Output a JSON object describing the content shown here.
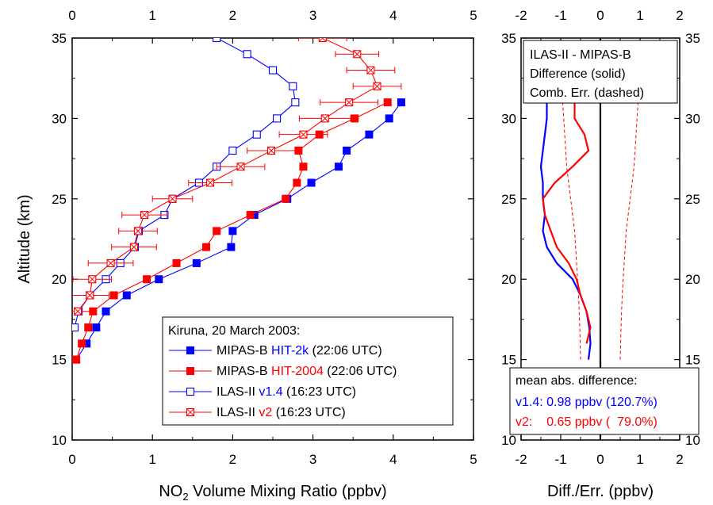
{
  "chart_data": [
    {
      "type": "line",
      "xlabel": "NO₂ Volume Mixing Ratio (ppbv)",
      "xlabel_main": "NO",
      "xlabel_sub": "2",
      "xlabel_rest": " Volume Mixing Ratio (ppbv)",
      "ylabel": "Altitude (km)",
      "xlim": [
        0,
        5
      ],
      "ylim": [
        10,
        35
      ],
      "x_ticks": [
        0,
        1,
        2,
        3,
        4,
        5
      ],
      "y_ticks": [
        10,
        15,
        20,
        25,
        30,
        35
      ],
      "legend_title": "Kiruna, 20 March 2003:",
      "legend_position": "bottom-right",
      "series": [
        {
          "legend_prefix": "MIPAS-B ",
          "legend_version": "HIT-2k",
          "legend_suffix": " (22:06 UTC)",
          "color": "#0000ff",
          "version_color": "#0000ff",
          "marker": "filled-square",
          "points": [
            [
              0.05,
              15
            ],
            [
              0.18,
              16
            ],
            [
              0.3,
              17
            ],
            [
              0.42,
              18
            ],
            [
              0.68,
              19
            ],
            [
              1.08,
              20
            ],
            [
              1.55,
              21
            ],
            [
              1.98,
              22
            ],
            [
              2.0,
              23
            ],
            [
              2.27,
              24
            ],
            [
              2.68,
              25
            ],
            [
              2.98,
              26
            ],
            [
              3.32,
              27
            ],
            [
              3.42,
              28
            ],
            [
              3.7,
              29
            ],
            [
              3.95,
              30
            ],
            [
              4.1,
              31
            ]
          ]
        },
        {
          "legend_prefix": "MIPAS-B ",
          "legend_version": "HIT-2004",
          "legend_suffix": " (22:06 UTC)",
          "color": "#ff0000",
          "version_color": "#ff0000",
          "marker": "filled-square",
          "points": [
            [
              0.05,
              15
            ],
            [
              0.12,
              16
            ],
            [
              0.2,
              17
            ],
            [
              0.26,
              18
            ],
            [
              0.52,
              19
            ],
            [
              0.93,
              20
            ],
            [
              1.3,
              21
            ],
            [
              1.67,
              22
            ],
            [
              1.8,
              23
            ],
            [
              2.22,
              24
            ],
            [
              2.66,
              25
            ],
            [
              2.8,
              26
            ],
            [
              2.88,
              27
            ],
            [
              2.82,
              28
            ],
            [
              3.08,
              29
            ],
            [
              3.52,
              30
            ],
            [
              3.93,
              31
            ]
          ]
        },
        {
          "legend_prefix": "ILAS-II ",
          "legend_version": "v1.4",
          "legend_suffix": " (16:23 UTC)",
          "color": "#0000ff",
          "version_color": "#0000ff",
          "marker": "open-square",
          "points": [
            [
              0.03,
              17
            ],
            [
              0.08,
              18
            ],
            [
              0.22,
              19
            ],
            [
              0.42,
              20
            ],
            [
              0.6,
              21
            ],
            [
              0.78,
              22
            ],
            [
              0.83,
              23
            ],
            [
              1.15,
              24
            ],
            [
              1.25,
              25
            ],
            [
              1.58,
              26
            ],
            [
              1.8,
              27
            ],
            [
              2.0,
              28
            ],
            [
              2.3,
              29
            ],
            [
              2.55,
              30
            ],
            [
              2.78,
              31
            ],
            [
              2.75,
              32
            ],
            [
              2.5,
              33
            ],
            [
              2.18,
              34
            ],
            [
              1.8,
              35
            ]
          ]
        },
        {
          "legend_prefix": "ILAS-II ",
          "legend_version": "v2",
          "legend_suffix": " (16:23 UTC)",
          "color": "#ff0000",
          "version_color": "#ff0000",
          "marker": "crossed-square",
          "points": [
            [
              0.07,
              18
            ],
            [
              0.22,
              19
            ],
            [
              0.25,
              20
            ],
            [
              0.48,
              21
            ],
            [
              0.77,
              22
            ],
            [
              0.82,
              23
            ],
            [
              0.9,
              24
            ],
            [
              1.25,
              25
            ],
            [
              1.72,
              26
            ],
            [
              2.1,
              27
            ],
            [
              2.48,
              28
            ],
            [
              2.88,
              29
            ],
            [
              3.15,
              30
            ],
            [
              3.45,
              31
            ],
            [
              3.8,
              32
            ],
            [
              3.72,
              33
            ],
            [
              3.55,
              34
            ],
            [
              3.12,
              35
            ]
          ],
          "x_error": [
            0.22,
            0.24,
            0.24,
            0.28,
            0.28,
            0.24,
            0.28,
            0.25,
            0.27,
            0.3,
            0.3,
            0.3,
            0.32,
            0.36,
            0.3,
            0.3,
            0.27,
            0.3
          ]
        }
      ]
    },
    {
      "type": "line",
      "xlabel": "Diff./Err. (ppbv)",
      "ylabel": "",
      "xlim": [
        -2,
        2
      ],
      "ylim": [
        10,
        35
      ],
      "x_ticks": [
        -2,
        -1,
        0,
        1,
        2
      ],
      "y_ticks": [
        10,
        15,
        20,
        25,
        30,
        35
      ],
      "annotation_top": [
        "ILAS-II - MIPAS-B",
        "Difference (solid)",
        "Comb. Err. (dashed)"
      ],
      "stats_title": "mean abs. difference:",
      "stats": [
        {
          "text": "v1.4: 0.98 ppbv (120.7%)",
          "color": "#0000ff"
        },
        {
          "text": "v2:    0.65 ppbv (  79.0%)",
          "color": "#ff0000"
        }
      ],
      "series": [
        {
          "name": "v1.4 difference",
          "color": "#0000ff",
          "style": "solid",
          "points": [
            [
              -0.3,
              15
            ],
            [
              -0.25,
              16
            ],
            [
              -0.28,
              17
            ],
            [
              -0.35,
              18
            ],
            [
              -0.5,
              19
            ],
            [
              -0.7,
              20
            ],
            [
              -1.1,
              21
            ],
            [
              -1.35,
              22
            ],
            [
              -1.45,
              23
            ],
            [
              -1.4,
              24
            ],
            [
              -1.45,
              25
            ],
            [
              -1.45,
              26
            ],
            [
              -1.5,
              27
            ],
            [
              -1.45,
              28
            ],
            [
              -1.4,
              29
            ],
            [
              -1.35,
              30
            ],
            [
              -1.35,
              31
            ]
          ]
        },
        {
          "name": "v2 difference",
          "color": "#ff0000",
          "style": "solid",
          "points": [
            [
              -0.35,
              16
            ],
            [
              -0.25,
              17
            ],
            [
              -0.35,
              18
            ],
            [
              -0.5,
              19
            ],
            [
              -0.6,
              20
            ],
            [
              -0.8,
              21
            ],
            [
              -1.1,
              22
            ],
            [
              -1.25,
              23
            ],
            [
              -1.4,
              24
            ],
            [
              -1.45,
              25
            ],
            [
              -1.15,
              26
            ],
            [
              -0.7,
              27
            ],
            [
              -0.3,
              28
            ],
            [
              -0.4,
              29
            ],
            [
              -0.65,
              30
            ],
            [
              -0.65,
              31
            ]
          ]
        },
        {
          "name": "v2 error (-)",
          "color": "#ff0000",
          "style": "dashed",
          "points": [
            [
              -0.5,
              15
            ],
            [
              -0.52,
              17
            ],
            [
              -0.55,
              19
            ],
            [
              -0.6,
              21
            ],
            [
              -0.65,
              23
            ],
            [
              -0.75,
              25
            ],
            [
              -0.85,
              27
            ],
            [
              -0.9,
              29
            ],
            [
              -0.95,
              31
            ]
          ]
        },
        {
          "name": "v2 error (+)",
          "color": "#ff0000",
          "style": "dashed",
          "points": [
            [
              0.5,
              15
            ],
            [
              0.52,
              17
            ],
            [
              0.55,
              19
            ],
            [
              0.6,
              21
            ],
            [
              0.65,
              23
            ],
            [
              0.75,
              25
            ],
            [
              0.85,
              27
            ],
            [
              0.9,
              29
            ],
            [
              0.95,
              31
            ]
          ]
        }
      ]
    }
  ]
}
